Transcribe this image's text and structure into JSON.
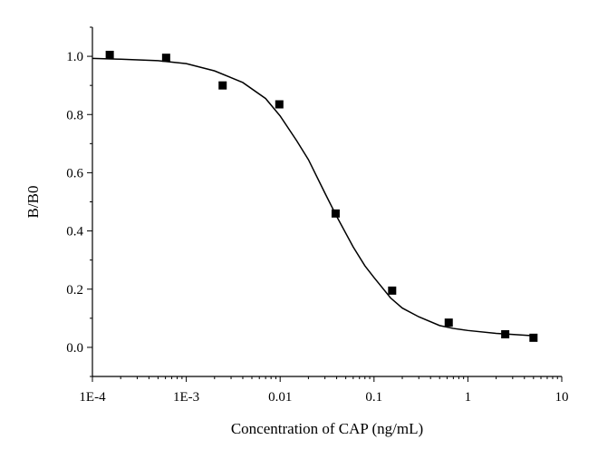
{
  "chart_data": {
    "type": "scatter",
    "title": "",
    "xlabel": "Concentration of CAP (ng/mL)",
    "ylabel": "B/B0",
    "xscale": "log",
    "xlim": [
      0.0001,
      10
    ],
    "ylim": [
      -0.1,
      1.1
    ],
    "x_ticks": [
      {
        "value": 0.0001,
        "label": "1E-4"
      },
      {
        "value": 0.001,
        "label": "1E-3"
      },
      {
        "value": 0.01,
        "label": "0.01"
      },
      {
        "value": 0.1,
        "label": "0.1"
      },
      {
        "value": 1,
        "label": "1"
      },
      {
        "value": 10,
        "label": "10"
      }
    ],
    "y_ticks": [
      {
        "value": 0.0,
        "label": "0.0"
      },
      {
        "value": 0.2,
        "label": "0.2"
      },
      {
        "value": 0.4,
        "label": "0.4"
      },
      {
        "value": 0.6,
        "label": "0.6"
      },
      {
        "value": 0.8,
        "label": "0.8"
      },
      {
        "value": 1.0,
        "label": "1.0"
      }
    ],
    "grid": false,
    "legend": "none",
    "series": [
      {
        "kind": "points",
        "marker": "square",
        "x": [
          0.000153,
          0.00061,
          0.00244,
          0.0098,
          0.039,
          0.156,
          0.625,
          2.5,
          5.0
        ],
        "y": [
          1.005,
          0.995,
          0.9,
          0.835,
          0.46,
          0.195,
          0.085,
          0.045,
          0.033
        ]
      },
      {
        "kind": "fit",
        "x": [
          0.0001,
          0.0002,
          0.0005,
          0.001,
          0.002,
          0.004,
          0.007,
          0.01,
          0.015,
          0.02,
          0.03,
          0.04,
          0.06,
          0.08,
          0.1,
          0.15,
          0.2,
          0.3,
          0.5,
          0.7,
          1,
          2,
          5
        ],
        "y": [
          0.993,
          0.99,
          0.985,
          0.975,
          0.95,
          0.91,
          0.855,
          0.795,
          0.71,
          0.645,
          0.53,
          0.45,
          0.345,
          0.28,
          0.24,
          0.17,
          0.135,
          0.105,
          0.075,
          0.065,
          0.058,
          0.048,
          0.04
        ]
      }
    ]
  }
}
